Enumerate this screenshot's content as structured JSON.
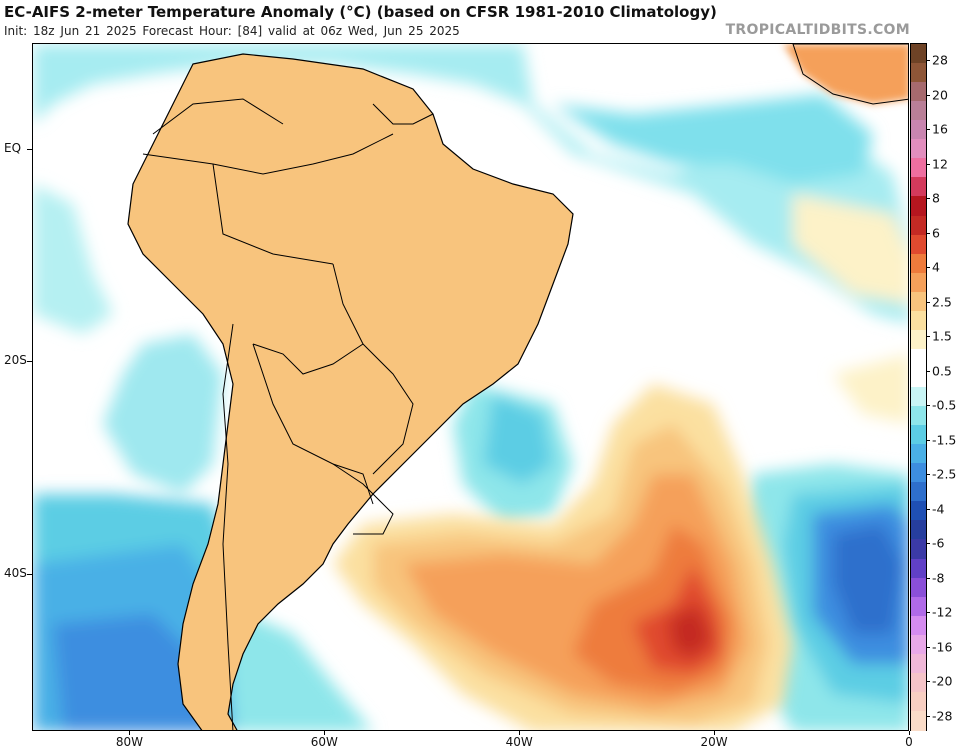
{
  "header": {
    "title": "EC-AIFS 2-meter Temperature Anomaly (°C) (based on CFSR 1981-2010 Climatology)",
    "subtitle": "Init: 18z Jun 21 2025   Forecast Hour: [84]   valid at 06z Wed, Jun 25 2025",
    "brand": "TROPICALTIDBITS.COM"
  },
  "map": {
    "lat_labels": [
      {
        "lat": 0,
        "text": "EQ"
      },
      {
        "lat": -20,
        "text": "20S"
      },
      {
        "lat": -40,
        "text": "40S"
      }
    ],
    "lon_labels": [
      {
        "lon": -80,
        "text": "80W"
      },
      {
        "lon": -60,
        "text": "60W"
      },
      {
        "lon": -40,
        "text": "40W"
      },
      {
        "lon": -20,
        "text": "20W"
      },
      {
        "lon": 0,
        "text": "0"
      }
    ],
    "anomaly_regions": [
      {
        "name": "brazil-warm",
        "color": "#f4b870"
      },
      {
        "name": "patagonia-cold",
        "color": "#5ba3df"
      },
      {
        "name": "south-brazil-cold-core",
        "color": "#8a4fd8"
      },
      {
        "name": "south-atlantic-warm",
        "color": "#f0a060"
      },
      {
        "name": "south-atlantic-warm-core",
        "color": "#d2302a"
      },
      {
        "name": "east-atlantic-cold",
        "color": "#3a7fd0"
      }
    ]
  },
  "colorbar": {
    "labels": [
      "28",
      "20",
      "16",
      "12",
      "8",
      "6",
      "4",
      "2.5",
      "1.5",
      "0.5",
      "-0.5",
      "-1.5",
      "-2.5",
      "-4",
      "-6",
      "-8",
      "-12",
      "-16",
      "-20",
      "-28"
    ],
    "colors": [
      "#6e4326",
      "#8e5637",
      "#a66a6e",
      "#b97f97",
      "#c985b0",
      "#e28ebe",
      "#ee6fa0",
      "#d33a5c",
      "#b5161f",
      "#c42a24",
      "#e04a2f",
      "#ee7b3c",
      "#f5a05a",
      "#f8c47d",
      "#fbe0a0",
      "#fdf2c8",
      "#ffffff",
      "#ffffff",
      "#c8f5f5",
      "#8ee6ea",
      "#5ccde4",
      "#4ab0e6",
      "#3d8ee0",
      "#2e6fcc",
      "#1f50b4",
      "#263e9e",
      "#3b3aa6",
      "#6040c6",
      "#8a4fd8",
      "#b06ae8",
      "#d58cf0",
      "#e8a8e8",
      "#f0b8d8",
      "#f5c4c8",
      "#f8cfc2",
      "#fadcc8"
    ]
  }
}
